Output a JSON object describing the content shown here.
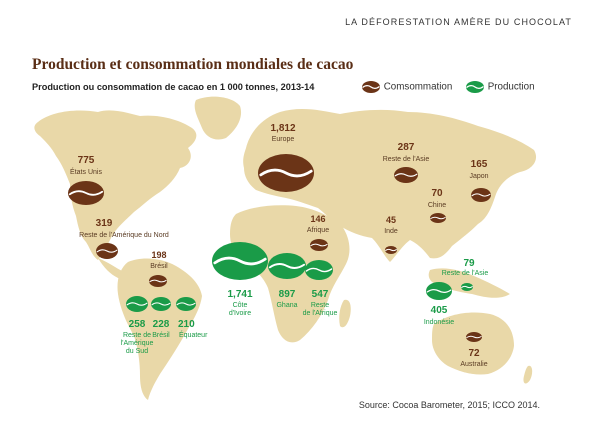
{
  "header": "LA DÉFORESTATION AMÈRE DU CHOCOLAT",
  "title": "Production et consommation mondiales de cacao",
  "subtitle": "Production ou consommation de cacao en 1 000 tonnes, 2013-14",
  "legend": {
    "consumption": {
      "label": "Comsommation",
      "color": "#6b3417"
    },
    "production": {
      "label": "Production",
      "color": "#1a9b48"
    }
  },
  "colors": {
    "land": "#e9d8a8",
    "consumption": "#6b3417",
    "production": "#1a9b48",
    "seam": "#ffffff"
  },
  "consumption": [
    {
      "id": "etats-unis",
      "value": "775",
      "name": "États Unis"
    },
    {
      "id": "reste-amerique-nord",
      "value": "319",
      "name": "Reste de l'Amérique du Nord"
    },
    {
      "id": "bresil-cons",
      "value": "198",
      "name": "Brésil"
    },
    {
      "id": "europe",
      "value": "1,812",
      "name": "Europe"
    },
    {
      "id": "reste-asie-cons",
      "value": "287",
      "name": "Reste de l'Asie"
    },
    {
      "id": "japon",
      "value": "165",
      "name": "Japon"
    },
    {
      "id": "chine",
      "value": "70",
      "name": "Chine"
    },
    {
      "id": "afrique",
      "value": "146",
      "name": "Afrique"
    },
    {
      "id": "inde",
      "value": "45",
      "name": "Inde"
    },
    {
      "id": "australie",
      "value": "72",
      "name": "Australie"
    }
  ],
  "production": [
    {
      "id": "cote-ivoire",
      "value": "1,741",
      "name": "Côte d'Ivoire"
    },
    {
      "id": "ghana",
      "value": "897",
      "name": "Ghana"
    },
    {
      "id": "reste-afrique",
      "value": "547",
      "name": "Reste de l'Afrique"
    },
    {
      "id": "reste-amerique-sud",
      "value": "258",
      "name": "Reste de l'Amérique du Sud"
    },
    {
      "id": "bresil-prod",
      "value": "228",
      "name": "Brésil"
    },
    {
      "id": "equateur",
      "value": "210",
      "name": "Équateur"
    },
    {
      "id": "indonesie",
      "value": "405",
      "name": "Indonésie"
    },
    {
      "id": "reste-asie-prod",
      "value": "79",
      "name": "Reste de l'Asie"
    }
  ],
  "source": "Source: Cocoa Barometer, 2015; ICCO 2014."
}
